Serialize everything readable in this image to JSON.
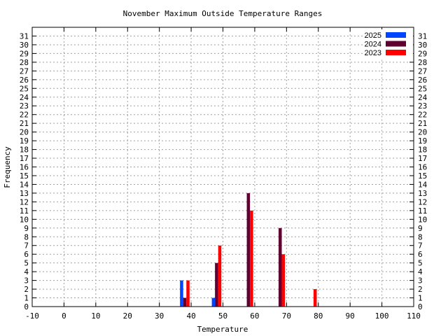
{
  "chart_data": {
    "type": "bar",
    "title": "November Maximum Outside Temperature Ranges",
    "xlabel": "Temperature",
    "ylabel": "Frequency",
    "xlim": [
      -10,
      110
    ],
    "ylim": [
      0,
      32
    ],
    "x_ticks": [
      -10,
      0,
      10,
      20,
      30,
      40,
      50,
      60,
      70,
      80,
      90,
      100,
      110
    ],
    "y_ticks": [
      0,
      1,
      2,
      3,
      4,
      5,
      6,
      7,
      8,
      9,
      10,
      11,
      12,
      13,
      14,
      15,
      16,
      17,
      18,
      19,
      20,
      21,
      22,
      23,
      24,
      25,
      26,
      27,
      28,
      29,
      30,
      31
    ],
    "grid": true,
    "legend_position": "top-right",
    "series": [
      {
        "name": "2025",
        "color": "#0046ff",
        "points": [
          {
            "x": 37,
            "y": 3
          },
          {
            "x": 47,
            "y": 1
          }
        ]
      },
      {
        "name": "2024",
        "color": "#5f0030",
        "points": [
          {
            "x": 38,
            "y": 1
          },
          {
            "x": 48,
            "y": 5
          },
          {
            "x": 58,
            "y": 13
          },
          {
            "x": 68,
            "y": 9
          }
        ]
      },
      {
        "name": "2023",
        "color": "#ff0000",
        "points": [
          {
            "x": 39,
            "y": 3
          },
          {
            "x": 49,
            "y": 7
          },
          {
            "x": 59,
            "y": 11
          },
          {
            "x": 69,
            "y": 6
          },
          {
            "x": 79,
            "y": 2
          }
        ]
      }
    ]
  }
}
